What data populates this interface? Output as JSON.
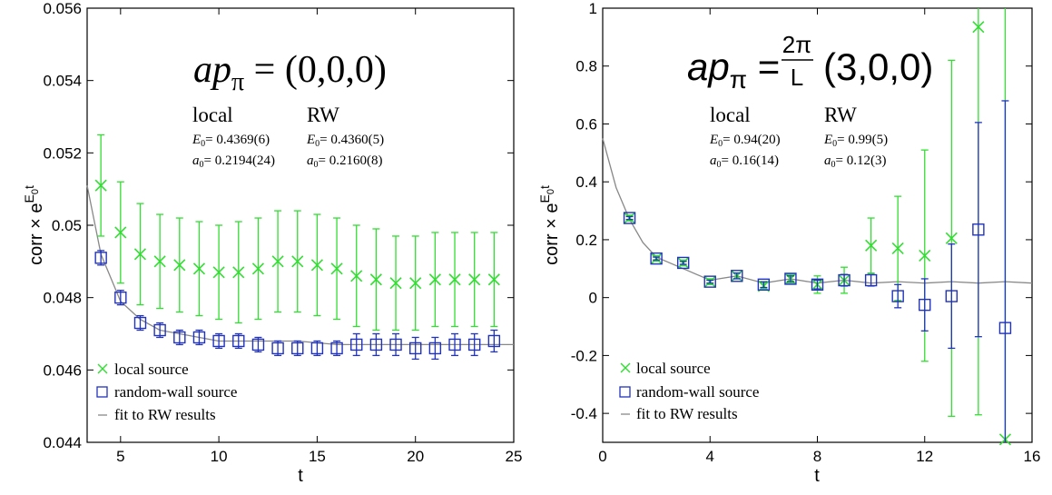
{
  "chart_data": [
    {
      "type": "scatter",
      "xlabel": "t",
      "ylabel": "corr × e^(E0 t)",
      "xlim": [
        3.3,
        25
      ],
      "ylim": [
        0.044,
        0.056
      ],
      "xticks": [
        5,
        10,
        15,
        20,
        25
      ],
      "yticks": [
        0.044,
        0.046,
        0.048,
        0.05,
        0.052,
        0.054,
        0.056
      ],
      "ytick_labels": [
        "0.044",
        "0.046",
        "0.048",
        "0.05",
        "0.052",
        "0.054",
        "0.056"
      ],
      "title_parts": {
        "lhs": "ap",
        "sub": "π",
        "eq": "=",
        "rhs": "(0,0,0)"
      },
      "fit_params": {
        "local_label": "local",
        "rw_label": "RW",
        "local_E0": "= 0.4369(6)",
        "local_a0": "= 0.2194(24)",
        "rw_E0": "= 0.4360(5)",
        "rw_a0": "= 0.2160(8)"
      },
      "legend": {
        "local": "local source",
        "rw": "random-wall source",
        "fit": "fit to RW results"
      },
      "series": [
        {
          "name": "local source",
          "color": "#33dd33",
          "marker": "x",
          "x": [
            4,
            5,
            6,
            7,
            8,
            9,
            10,
            11,
            12,
            13,
            14,
            15,
            16,
            17,
            18,
            19,
            20,
            21,
            22,
            23,
            24
          ],
          "y": [
            0.0511,
            0.0498,
            0.0492,
            0.049,
            0.0489,
            0.0488,
            0.0487,
            0.0487,
            0.0488,
            0.049,
            0.049,
            0.0489,
            0.0488,
            0.0486,
            0.0485,
            0.0484,
            0.0484,
            0.0485,
            0.0485,
            0.0485,
            0.0485
          ],
          "err": [
            0.0014,
            0.0014,
            0.0014,
            0.0013,
            0.0013,
            0.0013,
            0.0013,
            0.0014,
            0.0014,
            0.0014,
            0.0014,
            0.0014,
            0.0014,
            0.0014,
            0.0014,
            0.0013,
            0.0013,
            0.0013,
            0.0013,
            0.0013,
            0.0013
          ]
        },
        {
          "name": "random-wall source",
          "color": "#2233bb",
          "marker": "square",
          "x": [
            4,
            5,
            6,
            7,
            8,
            9,
            10,
            11,
            12,
            13,
            14,
            15,
            16,
            17,
            18,
            19,
            20,
            21,
            22,
            23,
            24
          ],
          "y": [
            0.0491,
            0.048,
            0.0473,
            0.0471,
            0.0469,
            0.0469,
            0.0468,
            0.0468,
            0.0467,
            0.0466,
            0.0466,
            0.0466,
            0.0466,
            0.0467,
            0.0467,
            0.0467,
            0.0466,
            0.0466,
            0.0467,
            0.0467,
            0.0468
          ],
          "err": [
            0.0002,
            0.0002,
            0.0002,
            0.0002,
            0.0002,
            0.0002,
            0.0002,
            0.0002,
            0.0002,
            0.0002,
            0.0002,
            0.0002,
            0.0002,
            0.0003,
            0.0003,
            0.0003,
            0.0003,
            0.0003,
            0.0003,
            0.0003,
            0.0003
          ]
        }
      ],
      "fit_curve": {
        "name": "fit to RW results",
        "color": "#888888",
        "x": [
          3.3,
          4,
          5,
          6,
          7,
          8,
          9,
          10,
          12,
          14,
          16,
          18,
          20,
          22,
          25
        ],
        "y": [
          0.0511,
          0.0492,
          0.0479,
          0.0474,
          0.0471,
          0.047,
          0.0469,
          0.0468,
          0.0468,
          0.0468,
          0.0467,
          0.0467,
          0.0467,
          0.0467,
          0.0467
        ]
      }
    },
    {
      "type": "scatter",
      "xlabel": "t",
      "ylabel": "corr × e^(E0 t)",
      "xlim": [
        0,
        16
      ],
      "ylim": [
        -0.5,
        1
      ],
      "xticks": [
        0,
        4,
        8,
        12,
        16
      ],
      "yticks": [
        -0.4,
        -0.2,
        0,
        0.2,
        0.4,
        0.6,
        0.8,
        1
      ],
      "ytick_labels": [
        "-0.4",
        "-0.2",
        "0",
        "0.2",
        "0.4",
        "0.6",
        "0.8",
        "1"
      ],
      "title_parts": {
        "lhs": "ap",
        "sub": "π",
        "eq": "=",
        "frac_num": "2π",
        "frac_den": "L",
        "rhs": "(3,0,0)"
      },
      "fit_params": {
        "local_label": "local",
        "rw_label": "RW",
        "local_E0": "= 0.94(20)",
        "local_a0": "= 0.16(14)",
        "rw_E0": "= 0.99(5)",
        "rw_a0": "= 0.12(3)"
      },
      "legend": {
        "local": "local source",
        "rw": "random-wall source",
        "fit": "fit to RW results"
      },
      "series": [
        {
          "name": "local source",
          "color": "#33dd33",
          "marker": "x",
          "x": [
            1,
            2,
            3,
            4,
            5,
            6,
            7,
            8,
            9,
            10,
            11,
            12,
            13,
            14,
            15
          ],
          "y": [
            0.275,
            0.135,
            0.12,
            0.055,
            0.075,
            0.04,
            0.065,
            0.045,
            0.06,
            0.18,
            0.17,
            0.145,
            0.205,
            0.935,
            -0.49
          ],
          "err": [
            0.01,
            0.01,
            0.01,
            0.01,
            0.01,
            0.01,
            0.015,
            0.03,
            0.045,
            0.095,
            0.18,
            0.365,
            0.615,
            1.34,
            1.5
          ]
        },
        {
          "name": "random-wall source",
          "color": "#2233bb",
          "marker": "square",
          "x": [
            1,
            2,
            3,
            4,
            5,
            6,
            7,
            8,
            9,
            10,
            11,
            12,
            13,
            14,
            15
          ],
          "y": [
            0.275,
            0.135,
            0.12,
            0.055,
            0.075,
            0.045,
            0.065,
            0.045,
            0.06,
            0.06,
            0.005,
            -0.025,
            0.005,
            0.235,
            -0.105
          ],
          "err": [
            0.005,
            0.005,
            0.005,
            0.005,
            0.01,
            0.01,
            0.01,
            0.015,
            0.02,
            0.02,
            0.04,
            0.09,
            0.18,
            0.37,
            0.785
          ]
        }
      ],
      "fit_curve": {
        "name": "fit to RW results",
        "color": "#888888",
        "x": [
          0,
          0.5,
          1,
          1.5,
          2,
          3,
          4,
          5,
          6,
          7,
          8,
          9,
          10,
          11,
          12,
          13,
          14,
          15,
          16
        ],
        "y": [
          0.55,
          0.38,
          0.27,
          0.19,
          0.14,
          0.1,
          0.06,
          0.075,
          0.05,
          0.065,
          0.05,
          0.06,
          0.05,
          0.055,
          0.05,
          0.055,
          0.05,
          0.055,
          0.05
        ]
      }
    }
  ]
}
